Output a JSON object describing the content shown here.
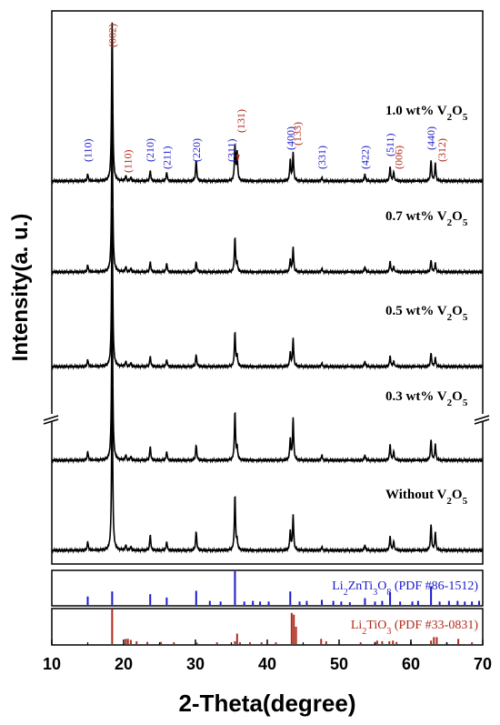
{
  "chart_data": {
    "type": "line",
    "xlabel": "2-Theta(degree)",
    "ylabel": "Intensity(a. u.)",
    "xlim": [
      10,
      70
    ],
    "xticks": [
      "10",
      "20",
      "30",
      "40",
      "50",
      "60",
      "70"
    ],
    "grid": false,
    "series": [
      {
        "name_main": "1.0 wt% V",
        "sub1": "2",
        "name_mid": "O",
        "sub2": "5",
        "peaks": [
          [
            15.0,
            0.04
          ],
          [
            18.4,
            0.92
          ],
          [
            20.3,
            0.03
          ],
          [
            21.0,
            0.02
          ],
          [
            23.7,
            0.06
          ],
          [
            26.0,
            0.05
          ],
          [
            30.1,
            0.12
          ],
          [
            35.5,
            0.2
          ],
          [
            35.8,
            0.16
          ],
          [
            43.2,
            0.12
          ],
          [
            43.6,
            0.16
          ],
          [
            47.6,
            0.02
          ],
          [
            53.6,
            0.04
          ],
          [
            57.1,
            0.08
          ],
          [
            57.6,
            0.05
          ],
          [
            62.8,
            0.12
          ],
          [
            63.4,
            0.1
          ]
        ]
      },
      {
        "name_main": "0.7 wt% V",
        "sub1": "2",
        "name_mid": "O",
        "sub2": "5",
        "peaks": [
          [
            15.0,
            0.04
          ],
          [
            18.4,
            0.92
          ],
          [
            20.3,
            0.03
          ],
          [
            21.0,
            0.02
          ],
          [
            23.7,
            0.06
          ],
          [
            26.0,
            0.05
          ],
          [
            30.1,
            0.06
          ],
          [
            35.5,
            0.2
          ],
          [
            35.8,
            0.05
          ],
          [
            43.2,
            0.07
          ],
          [
            43.6,
            0.14
          ],
          [
            47.6,
            0.02
          ],
          [
            53.6,
            0.03
          ],
          [
            57.1,
            0.06
          ],
          [
            57.6,
            0.03
          ],
          [
            62.8,
            0.07
          ],
          [
            63.4,
            0.05
          ]
        ]
      },
      {
        "name_main": "0.5 wt% V",
        "sub1": "2",
        "name_mid": "O",
        "sub2": "5",
        "peaks": [
          [
            15.0,
            0.04
          ],
          [
            18.4,
            0.92
          ],
          [
            20.3,
            0.03
          ],
          [
            21.0,
            0.02
          ],
          [
            23.7,
            0.06
          ],
          [
            26.0,
            0.04
          ],
          [
            30.1,
            0.07
          ],
          [
            35.5,
            0.2
          ],
          [
            35.8,
            0.06
          ],
          [
            43.2,
            0.08
          ],
          [
            43.6,
            0.16
          ],
          [
            47.6,
            0.02
          ],
          [
            53.6,
            0.03
          ],
          [
            57.1,
            0.06
          ],
          [
            57.6,
            0.03
          ],
          [
            62.8,
            0.08
          ],
          [
            63.4,
            0.05
          ]
        ]
      },
      {
        "name_main": "0.3 wt% V",
        "sub1": "2",
        "name_mid": "O",
        "sub2": "5",
        "peaks": [
          [
            15.0,
            0.05
          ],
          [
            18.4,
            1.0
          ],
          [
            20.3,
            0.03
          ],
          [
            21.0,
            0.02
          ],
          [
            23.7,
            0.08
          ],
          [
            26.0,
            0.05
          ],
          [
            30.1,
            0.09
          ],
          [
            35.5,
            0.28
          ],
          [
            35.8,
            0.07
          ],
          [
            43.2,
            0.12
          ],
          [
            43.6,
            0.24
          ],
          [
            47.6,
            0.03
          ],
          [
            53.6,
            0.03
          ],
          [
            57.1,
            0.09
          ],
          [
            57.6,
            0.05
          ],
          [
            62.8,
            0.12
          ],
          [
            63.4,
            0.09
          ]
        ]
      },
      {
        "name_main": "Without V",
        "sub1": "2",
        "name_mid": "O",
        "sub2": "5",
        "peaks": [
          [
            15.0,
            0.05
          ],
          [
            18.4,
            0.95
          ],
          [
            20.3,
            0.03
          ],
          [
            21.0,
            0.02
          ],
          [
            23.7,
            0.09
          ],
          [
            26.0,
            0.05
          ],
          [
            30.1,
            0.11
          ],
          [
            35.5,
            0.32
          ],
          [
            35.8,
            0.05
          ],
          [
            43.2,
            0.11
          ],
          [
            43.6,
            0.2
          ],
          [
            47.6,
            0.02
          ],
          [
            53.6,
            0.03
          ],
          [
            57.1,
            0.08
          ],
          [
            57.6,
            0.05
          ],
          [
            62.8,
            0.15
          ],
          [
            63.4,
            0.1
          ]
        ]
      }
    ],
    "hkl_labels": [
      {
        "text": "(110)",
        "x": 15.0,
        "color": "#1a1acc"
      },
      {
        "text": "(002)",
        "x": 18.4,
        "color": "#b02a1a"
      },
      {
        "text": "(110)",
        "x": 20.6,
        "color": "#b02a1a"
      },
      {
        "text": "(210)",
        "x": 23.7,
        "color": "#1a1acc"
      },
      {
        "text": "(211)",
        "x": 26.0,
        "color": "#1a1acc"
      },
      {
        "text": "(220)",
        "x": 30.1,
        "color": "#1a1acc"
      },
      {
        "text": "(311)",
        "x": 35.0,
        "color": "#1a1acc"
      },
      {
        "text": "(131)",
        "x": 36.3,
        "color": "#b02a1a"
      },
      {
        "text": "(400)",
        "x": 43.2,
        "color": "#1a1acc"
      },
      {
        "text": "(133)",
        "x": 44.2,
        "color": "#b02a1a"
      },
      {
        "text": "(331)",
        "x": 47.6,
        "color": "#1a1acc"
      },
      {
        "text": "(422)",
        "x": 53.6,
        "color": "#1a1acc"
      },
      {
        "text": "(511)",
        "x": 57.1,
        "color": "#1a1acc"
      },
      {
        "text": "(006)",
        "x": 58.3,
        "color": "#b02a1a"
      },
      {
        "text": "(440)",
        "x": 62.8,
        "color": "#1a1acc"
      },
      {
        "text": "(312)",
        "x": 64.3,
        "color": "#b02a1a"
      }
    ],
    "references": [
      {
        "label_main": "Li",
        "label_sub1": "2",
        "label_mid": "ZnTi",
        "label_sub2": "3",
        "label_mid2": "O",
        "label_sub3": "8",
        "label_tail": " (PDF #86-1512)",
        "color": "#1a1acc",
        "lines": [
          [
            15.0,
            0.25
          ],
          [
            18.4,
            0.4
          ],
          [
            23.7,
            0.32
          ],
          [
            26.0,
            0.22
          ],
          [
            30.1,
            0.42
          ],
          [
            32.0,
            0.12
          ],
          [
            33.5,
            0.1
          ],
          [
            35.5,
            1.0
          ],
          [
            36.8,
            0.1
          ],
          [
            38.0,
            0.12
          ],
          [
            39.0,
            0.1
          ],
          [
            40.2,
            0.1
          ],
          [
            43.2,
            0.4
          ],
          [
            44.5,
            0.1
          ],
          [
            45.5,
            0.12
          ],
          [
            47.6,
            0.15
          ],
          [
            49.2,
            0.12
          ],
          [
            50.3,
            0.1
          ],
          [
            51.5,
            0.08
          ],
          [
            53.6,
            0.2
          ],
          [
            55.0,
            0.1
          ],
          [
            56.0,
            0.12
          ],
          [
            57.1,
            0.38
          ],
          [
            58.5,
            0.1
          ],
          [
            60.2,
            0.1
          ],
          [
            61.0,
            0.12
          ],
          [
            62.8,
            0.55
          ],
          [
            64.0,
            0.1
          ],
          [
            65.3,
            0.12
          ],
          [
            66.5,
            0.12
          ],
          [
            67.5,
            0.1
          ],
          [
            68.5,
            0.1
          ],
          [
            69.5,
            0.12
          ]
        ]
      },
      {
        "label_main": "Li",
        "label_sub1": "2",
        "label_mid": "TiO",
        "label_sub2": "3",
        "label_mid2": "",
        "label_sub3": "",
        "label_tail": " (PDF #33-0831)",
        "color": "#b02a1a",
        "lines": [
          [
            18.4,
            1.0
          ],
          [
            20.3,
            0.15
          ],
          [
            20.6,
            0.15
          ],
          [
            21.0,
            0.12
          ],
          [
            21.8,
            0.08
          ],
          [
            23.3,
            0.06
          ],
          [
            25.2,
            0.06
          ],
          [
            27.0,
            0.05
          ],
          [
            30.2,
            0.04
          ],
          [
            33.0,
            0.05
          ],
          [
            35.5,
            0.08
          ],
          [
            35.8,
            0.3
          ],
          [
            36.2,
            0.05
          ],
          [
            37.6,
            0.05
          ],
          [
            39.2,
            0.05
          ],
          [
            41.2,
            0.05
          ],
          [
            43.4,
            0.9
          ],
          [
            43.7,
            0.85
          ],
          [
            44.0,
            0.5
          ],
          [
            47.5,
            0.15
          ],
          [
            48.2,
            0.08
          ],
          [
            53.0,
            0.05
          ],
          [
            55.0,
            0.06
          ],
          [
            55.3,
            0.1
          ],
          [
            56.0,
            0.08
          ],
          [
            57.0,
            0.08
          ],
          [
            57.5,
            0.1
          ],
          [
            58.0,
            0.06
          ],
          [
            60.0,
            0.06
          ],
          [
            62.8,
            0.1
          ],
          [
            63.2,
            0.2
          ],
          [
            63.6,
            0.2
          ],
          [
            65.0,
            0.05
          ],
          [
            66.6,
            0.15
          ],
          [
            68.5,
            0.05
          ]
        ]
      }
    ]
  }
}
